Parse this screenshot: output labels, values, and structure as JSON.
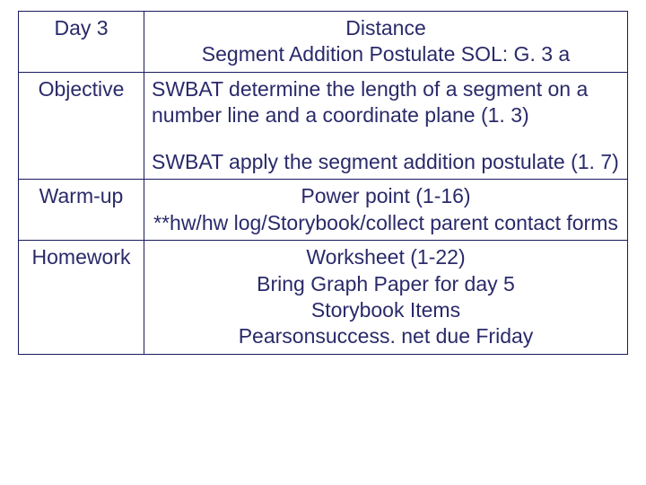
{
  "table": {
    "row1": {
      "label": "Day 3",
      "line1": "Distance",
      "line2": "Segment Addition Postulate SOL: G. 3 a"
    },
    "row2": {
      "label": "Objective",
      "line1": "SWBAT determine the length of a segment on a number line and a coordinate plane (1. 3)",
      "line2": "SWBAT apply the segment addition postulate (1. 7)"
    },
    "row3": {
      "label": "Warm-up",
      "line1": "Power point (1-16)",
      "line2": "**hw/hw log/Storybook/collect parent contact forms"
    },
    "row4": {
      "label": "Homework",
      "line1": "Worksheet (1-22)",
      "line2": "Bring Graph Paper for day 5",
      "line3": "Storybook Items",
      "line4": "Pearsonsuccess. net due Friday"
    }
  },
  "colors": {
    "text": "#2a2a6a",
    "border": "#1a1a5e",
    "background": "#ffffff"
  },
  "font": {
    "family": "Comic Sans MS",
    "size": 23
  }
}
